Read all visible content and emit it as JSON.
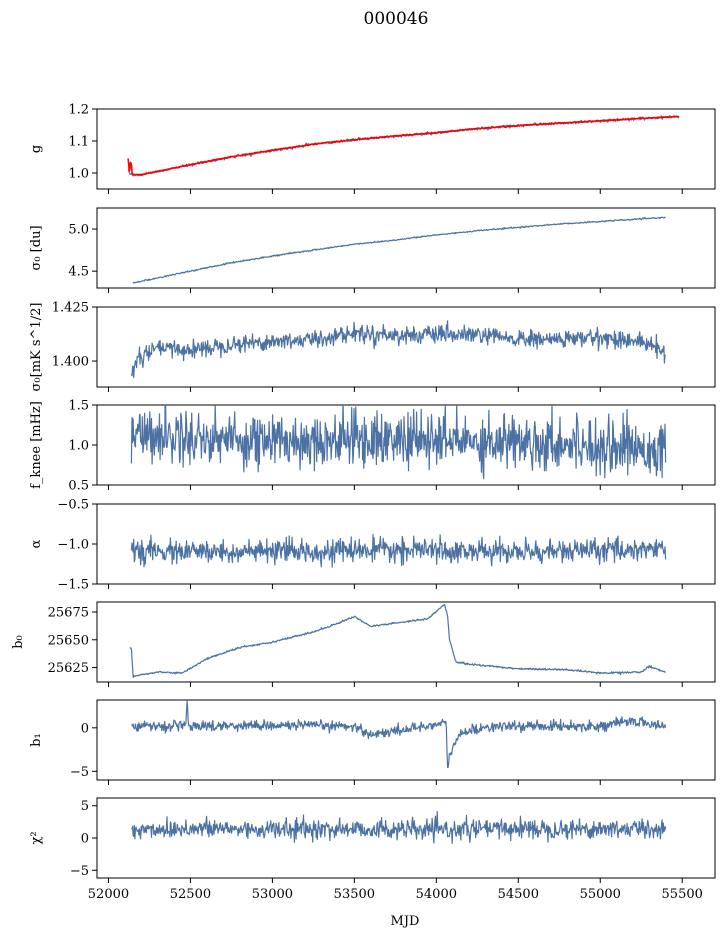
{
  "figure": {
    "title": "000046",
    "xlabel": "MJD"
  },
  "colors": {
    "series": "#4c72a4",
    "fit": "#ff0000",
    "frame": "#000000"
  },
  "chart_data": [
    {
      "type": "line",
      "panel": "g",
      "ylabel": "g",
      "xlim": [
        51930,
        55700
      ],
      "ylim": [
        0.95,
        1.2
      ],
      "xticks": [
        52000,
        52500,
        53000,
        53500,
        54000,
        54500,
        55000,
        55500
      ],
      "yticks": [
        1.0,
        1.1,
        1.2
      ],
      "ytick_labels": [
        "1.0",
        "1.1",
        "1.2"
      ],
      "series": [
        {
          "kind": "data",
          "x": [
            52120,
            52130,
            52150,
            52200,
            52300,
            52500,
            52750,
            53000,
            53250,
            53500,
            53750,
            54000,
            54250,
            54500,
            54750,
            55000,
            55250,
            55480
          ],
          "y": [
            1.01,
            1.0,
            0.995,
            0.995,
            1.005,
            1.025,
            1.05,
            1.07,
            1.09,
            1.103,
            1.115,
            1.125,
            1.138,
            1.148,
            1.155,
            1.163,
            1.17,
            1.177
          ]
        },
        {
          "kind": "fit",
          "x": [
            52120,
            52130,
            52150,
            52200,
            52300,
            52500,
            52750,
            53000,
            53250,
            53500,
            53750,
            54000,
            54250,
            54500,
            54750,
            55000,
            55250,
            55480
          ],
          "y": [
            1.02,
            1.003,
            0.995,
            0.994,
            1.005,
            1.026,
            1.051,
            1.071,
            1.09,
            1.104,
            1.116,
            1.126,
            1.139,
            1.148,
            1.156,
            1.163,
            1.171,
            1.176
          ]
        }
      ]
    },
    {
      "type": "line",
      "panel": "sigma0",
      "ylabel": "σ₀ [du]",
      "xlim": [
        51930,
        55700
      ],
      "ylim": [
        4.3,
        5.25
      ],
      "yticks": [
        4.5,
        5.0
      ],
      "ytick_labels": [
        "4.5",
        "5.0"
      ],
      "series": [
        {
          "kind": "data",
          "x": [
            52150,
            52250,
            52500,
            52750,
            53000,
            53250,
            53500,
            53750,
            54000,
            54250,
            54500,
            54750,
            55000,
            55250,
            55400
          ],
          "y": [
            4.36,
            4.4,
            4.5,
            4.6,
            4.68,
            4.75,
            4.82,
            4.87,
            4.93,
            4.98,
            5.02,
            5.06,
            5.09,
            5.12,
            5.14
          ]
        }
      ]
    },
    {
      "type": "line",
      "panel": "sigma0_phys",
      "ylabel": "σ₀[mK s^1/2]",
      "xlim": [
        51930,
        55700
      ],
      "ylim": [
        1.388,
        1.425
      ],
      "yticks": [
        1.4,
        1.425
      ],
      "ytick_labels": [
        "1.400",
        "1.425"
      ],
      "series": [
        {
          "kind": "data",
          "x": [
            52140,
            52200,
            52300,
            52500,
            52750,
            53000,
            53250,
            53500,
            53750,
            54000,
            54250,
            54500,
            54750,
            55000,
            55250,
            55400
          ],
          "y": [
            1.395,
            1.402,
            1.406,
            1.405,
            1.408,
            1.409,
            1.41,
            1.413,
            1.412,
            1.412,
            1.412,
            1.41,
            1.41,
            1.411,
            1.409,
            1.404
          ]
        }
      ]
    },
    {
      "type": "line",
      "panel": "fknee",
      "ylabel": "f_knee [mHz]",
      "xlim": [
        51930,
        55700
      ],
      "ylim": [
        0.5,
        1.5
      ],
      "yticks": [
        0.5,
        1.0,
        1.5
      ],
      "ytick_labels": [
        "0.5",
        "1.0",
        "1.5"
      ],
      "series": [
        {
          "kind": "data",
          "x": [
            52140,
            52500,
            53000,
            53500,
            54000,
            54500,
            55000,
            55400
          ],
          "y": [
            1.15,
            1.1,
            1.05,
            1.08,
            1.05,
            1.05,
            1.0,
            0.95
          ]
        }
      ]
    },
    {
      "type": "line",
      "panel": "alpha",
      "ylabel": "α",
      "xlim": [
        51930,
        55700
      ],
      "ylim": [
        -1.5,
        -0.5
      ],
      "yticks": [
        -1.5,
        -1.0,
        -0.5
      ],
      "ytick_labels": [
        "−1.5",
        "−1.0",
        "−0.5"
      ],
      "series": [
        {
          "kind": "data",
          "x": [
            52140,
            52500,
            53000,
            53500,
            54000,
            54500,
            55000,
            55400
          ],
          "y": [
            -1.1,
            -1.1,
            -1.1,
            -1.08,
            -1.08,
            -1.1,
            -1.08,
            -1.05
          ]
        }
      ]
    },
    {
      "type": "line",
      "panel": "b0",
      "ylabel": "b₀",
      "xlim": [
        51930,
        55700
      ],
      "ylim": [
        25612,
        25684
      ],
      "yticks": [
        25625,
        25650,
        25675
      ],
      "ytick_labels": [
        "25625",
        "25650",
        "25675"
      ],
      "series": [
        {
          "kind": "data",
          "x": [
            52130,
            52140,
            52150,
            52300,
            52450,
            52600,
            52800,
            53000,
            53250,
            53400,
            53500,
            53600,
            53800,
            53950,
            54050,
            54070,
            54080,
            54120,
            54200,
            54500,
            54800,
            55000,
            55250,
            55300,
            55400
          ],
          "y": [
            25643,
            25642,
            25617,
            25621,
            25620,
            25633,
            25643,
            25648,
            25657,
            25665,
            25671,
            25662,
            25666,
            25669,
            25682,
            25670,
            25650,
            25630,
            25628,
            25624,
            25623,
            25620,
            25621,
            25626,
            25621
          ]
        }
      ]
    },
    {
      "type": "line",
      "panel": "b1",
      "ylabel": "b₁",
      "xlim": [
        51930,
        55700
      ],
      "ylim": [
        -6,
        3.2
      ],
      "yticks": [
        -5,
        0
      ],
      "ytick_labels": [
        "−5",
        "0"
      ],
      "series": [
        {
          "kind": "data",
          "x": [
            52140,
            52470,
            52480,
            52490,
            53000,
            53500,
            53600,
            54000,
            54060,
            54070,
            54080,
            54150,
            54300,
            54600,
            55000,
            55200,
            55400
          ],
          "y": [
            0.2,
            0.2,
            2.8,
            0.2,
            0.3,
            0.2,
            -0.8,
            0.4,
            0.5,
            -5.3,
            -3.0,
            -0.6,
            0.1,
            0.2,
            0.2,
            0.8,
            0.1
          ]
        }
      ]
    },
    {
      "type": "line",
      "panel": "chi2",
      "ylabel": "χ²",
      "xlim": [
        51930,
        55700
      ],
      "ylim": [
        -6.2,
        6.2
      ],
      "yticks": [
        -5,
        0,
        5
      ],
      "ytick_labels": [
        "−5",
        "0",
        "5"
      ],
      "series": [
        {
          "kind": "data",
          "x": [
            52140,
            52500,
            53000,
            53500,
            54000,
            54500,
            55000,
            55400
          ],
          "y": [
            1.2,
            1.5,
            1.3,
            1.4,
            1.2,
            1.5,
            1.4,
            1.5
          ]
        }
      ]
    }
  ]
}
